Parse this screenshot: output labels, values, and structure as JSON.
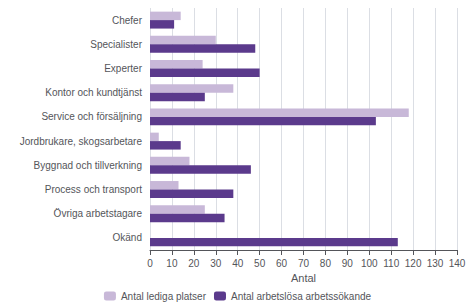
{
  "chart_data": {
    "type": "bar",
    "orientation": "horizontal",
    "categories": [
      "Chefer",
      "Specialister",
      "Experter",
      "Kontor och kundtjänst",
      "Service och försäljning",
      "Jordbrukare, skogsarbetare",
      "Byggnad och tillverkning",
      "Process och transport",
      "Övriga arbetstagare",
      "Okänd"
    ],
    "series": [
      {
        "name": "Antal lediga platser",
        "color": "#c8b8d8",
        "values": [
          14,
          30,
          24,
          38,
          118,
          4,
          18,
          13,
          25,
          0
        ]
      },
      {
        "name": "Antal arbetslösa arbetssökande",
        "color": "#5b3a8c",
        "values": [
          11,
          48,
          50,
          25,
          103,
          14,
          46,
          38,
          34,
          113
        ]
      }
    ],
    "xlabel": "Antal",
    "xlim": [
      0,
      140
    ],
    "xticks": [
      0,
      10,
      20,
      30,
      40,
      50,
      60,
      70,
      80,
      90,
      100,
      110,
      120,
      130,
      140
    ],
    "grid": true,
    "legend": "bottom"
  }
}
